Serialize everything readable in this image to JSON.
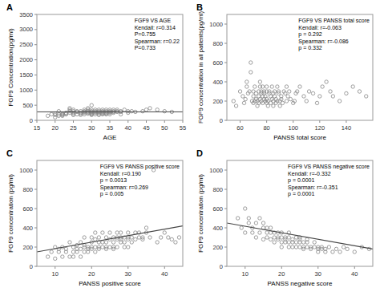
{
  "chart_data": [
    {
      "type": "scatter",
      "panel_label": "A",
      "xlabel": "AGE",
      "ylabel": "FGF9 Concentration(pg/ml)",
      "annotation": "FGF9 VS AGE\nKendall: r=0.314\nP=0.755\nSpearman: r=0.22\nP=0.733",
      "xlim": [
        15,
        55
      ],
      "ylim": [
        0,
        3500
      ],
      "xticks": [
        15,
        20,
        25,
        30,
        35,
        40,
        45,
        50,
        55
      ],
      "yticks": [
        0,
        500,
        1000,
        1500,
        2000,
        2500,
        3000,
        3500
      ],
      "series": [
        {
          "type": "scatter",
          "color": "#888888",
          "x": [
            18,
            19,
            20,
            20,
            20,
            21,
            21,
            21,
            22,
            22,
            22,
            22,
            23,
            23,
            23,
            24,
            24,
            24,
            24,
            25,
            25,
            25,
            25,
            25,
            26,
            26,
            26,
            27,
            27,
            27,
            27,
            28,
            28,
            28,
            28,
            28,
            29,
            29,
            29,
            29,
            29,
            29,
            30,
            30,
            30,
            30,
            30,
            30,
            30,
            30,
            31,
            31,
            31,
            31,
            31,
            32,
            32,
            32,
            32,
            32,
            32,
            33,
            33,
            33,
            33,
            33,
            33,
            34,
            34,
            34,
            34,
            34,
            34,
            35,
            35,
            35,
            35,
            35,
            36,
            36,
            36,
            36,
            37,
            37,
            37,
            38,
            38,
            38,
            39,
            40,
            40,
            41,
            42,
            44,
            45,
            46,
            48,
            50,
            52
          ],
          "values": [
            150,
            200,
            180,
            220,
            100,
            200,
            150,
            300,
            180,
            220,
            200,
            150,
            200,
            250,
            220,
            300,
            350,
            400,
            250,
            200,
            180,
            300,
            250,
            350,
            280,
            300,
            200,
            180,
            220,
            300,
            250,
            280,
            300,
            350,
            200,
            250,
            220,
            250,
            300,
            280,
            350,
            400,
            280,
            300,
            350,
            250,
            220,
            200,
            180,
            500,
            280,
            300,
            250,
            200,
            350,
            280,
            300,
            350,
            200,
            250,
            180,
            200,
            300,
            250,
            350,
            280,
            220,
            250,
            300,
            350,
            280,
            200,
            220,
            280,
            300,
            350,
            200,
            250,
            300,
            350,
            280,
            250,
            280,
            300,
            350,
            280,
            300,
            200,
            350,
            300,
            250,
            300,
            280,
            300,
            350,
            400,
            350,
            300,
            280
          ]
        },
        {
          "type": "hline",
          "color": "#444444",
          "values": [
            280
          ]
        }
      ]
    },
    {
      "type": "scatter",
      "panel_label": "B",
      "xlabel": "PANSS total score",
      "ylabel": "FGF9 concentration in all patients(pg/ml)",
      "annotation": "FGF9 VS PANSS total score\nKendall: r=-0.063\np = 0.292\nSpearman: r=-0.086\np = 0.332",
      "xlim": [
        50,
        160
      ],
      "ylim": [
        0,
        1100
      ],
      "xticks": [
        60,
        80,
        100,
        120,
        140
      ],
      "yticks": [
        0,
        200,
        400,
        600,
        800,
        1000
      ],
      "series": [
        {
          "type": "scatter",
          "color": "#888888",
          "x": [
            55,
            57,
            60,
            62,
            63,
            64,
            65,
            65,
            66,
            67,
            68,
            68,
            69,
            70,
            70,
            70,
            71,
            71,
            72,
            72,
            73,
            73,
            74,
            74,
            74,
            75,
            75,
            75,
            76,
            76,
            76,
            77,
            77,
            77,
            78,
            78,
            78,
            79,
            79,
            80,
            80,
            80,
            80,
            81,
            81,
            82,
            82,
            83,
            83,
            84,
            84,
            85,
            85,
            85,
            86,
            86,
            87,
            87,
            88,
            88,
            89,
            89,
            90,
            90,
            91,
            91,
            92,
            93,
            94,
            95,
            95,
            96,
            97,
            98,
            100,
            101,
            102,
            103,
            105,
            108,
            110,
            112,
            115,
            118,
            120,
            122,
            125,
            128,
            130,
            135,
            140,
            145,
            150,
            155
          ],
          "values": [
            200,
            150,
            300,
            250,
            180,
            220,
            400,
            350,
            280,
            300,
            600,
            500,
            200,
            180,
            250,
            300,
            350,
            200,
            220,
            280,
            150,
            200,
            300,
            250,
            180,
            350,
            220,
            400,
            280,
            300,
            200,
            250,
            350,
            180,
            220,
            300,
            280,
            200,
            250,
            180,
            300,
            350,
            220,
            150,
            200,
            280,
            300,
            250,
            180,
            220,
            350,
            200,
            280,
            150,
            300,
            250,
            220,
            180,
            350,
            200,
            280,
            300,
            150,
            200,
            250,
            220,
            180,
            300,
            280,
            200,
            350,
            250,
            300,
            220,
            180,
            200,
            280,
            300,
            350,
            250,
            200,
            300,
            280,
            180,
            250,
            350,
            400,
            300,
            250,
            200,
            280,
            350,
            300,
            250
          ]
        }
      ]
    },
    {
      "type": "scatter",
      "panel_label": "C",
      "xlabel": "PANSS positive score",
      "ylabel": "FGF9 concentration (pg/ml)",
      "annotation": "FGF9 VS PANSS positive score\nKendall: r=0.190\np = 0.0013\nSpearman: r=0.269\np = 0.005",
      "xlim": [
        5,
        45
      ],
      "ylim": [
        0,
        1100
      ],
      "xticks": [
        10,
        20,
        30,
        40
      ],
      "yticks": [
        0,
        200,
        400,
        600,
        800,
        1000
      ],
      "series": [
        {
          "type": "scatter",
          "color": "#888888",
          "x": [
            8,
            9,
            10,
            10,
            11,
            11,
            12,
            12,
            13,
            13,
            14,
            14,
            15,
            15,
            15,
            16,
            16,
            16,
            17,
            17,
            17,
            18,
            18,
            18,
            18,
            19,
            19,
            19,
            20,
            20,
            20,
            20,
            21,
            21,
            21,
            21,
            22,
            22,
            22,
            22,
            23,
            23,
            23,
            24,
            24,
            24,
            24,
            25,
            25,
            25,
            26,
            26,
            26,
            26,
            27,
            27,
            27,
            27,
            28,
            28,
            28,
            28,
            29,
            29,
            29,
            30,
            30,
            30,
            30,
            31,
            31,
            32,
            32,
            33,
            33,
            34,
            34,
            35,
            35,
            36,
            37,
            38,
            39,
            40,
            41,
            42,
            43,
            44
          ],
          "values": [
            100,
            150,
            80,
            200,
            180,
            150,
            100,
            200,
            150,
            180,
            250,
            100,
            200,
            150,
            100,
            180,
            220,
            150,
            100,
            250,
            180,
            200,
            150,
            300,
            220,
            180,
            200,
            150,
            250,
            300,
            200,
            180,
            350,
            200,
            280,
            150,
            300,
            200,
            250,
            180,
            200,
            350,
            250,
            300,
            200,
            180,
            250,
            200,
            350,
            280,
            300,
            250,
            200,
            180,
            350,
            280,
            300,
            200,
            250,
            350,
            300,
            280,
            200,
            300,
            250,
            200,
            350,
            280,
            300,
            250,
            300,
            350,
            280,
            300,
            350,
            280,
            300,
            400,
            350,
            300,
            1000,
            250,
            300,
            350,
            300,
            280,
            250,
            300
          ]
        },
        {
          "type": "line",
          "color": "#444444",
          "x": [
            5,
            45
          ],
          "values": [
            150,
            420
          ]
        }
      ]
    },
    {
      "type": "scatter",
      "panel_label": "D",
      "xlabel": "PANSS negative score",
      "ylabel": "FGF9 concentration (pg/ml)",
      "annotation": "FGF9 VS PANSS negative score\nKendall: r=-0.332\np = 0.0001\nSpearman: r=-0.351\np = 0.0001",
      "xlim": [
        5,
        45
      ],
      "ylim": [
        0,
        1100
      ],
      "xticks": [
        10,
        20,
        30,
        40
      ],
      "yticks": [
        0,
        200,
        400,
        600,
        800,
        1000
      ],
      "series": [
        {
          "type": "scatter",
          "color": "#888888",
          "x": [
            8,
            9,
            10,
            10,
            11,
            11,
            12,
            12,
            13,
            13,
            14,
            14,
            15,
            15,
            15,
            16,
            16,
            16,
            17,
            17,
            17,
            18,
            18,
            18,
            19,
            19,
            19,
            20,
            20,
            20,
            20,
            21,
            21,
            21,
            22,
            22,
            22,
            22,
            23,
            23,
            23,
            24,
            24,
            24,
            25,
            25,
            25,
            25,
            26,
            26,
            26,
            27,
            27,
            27,
            28,
            28,
            29,
            29,
            30,
            30,
            30,
            31,
            31,
            32,
            32,
            33,
            34,
            35,
            36,
            37,
            38,
            40,
            42,
            44
          ],
          "values": [
            500,
            400,
            600,
            350,
            450,
            500,
            400,
            350,
            300,
            450,
            500,
            350,
            400,
            280,
            450,
            350,
            300,
            400,
            280,
            350,
            400,
            300,
            250,
            350,
            300,
            280,
            350,
            250,
            300,
            350,
            200,
            280,
            300,
            250,
            200,
            300,
            250,
            350,
            200,
            280,
            250,
            200,
            300,
            250,
            280,
            200,
            250,
            300,
            180,
            250,
            200,
            280,
            200,
            250,
            180,
            200,
            200,
            250,
            180,
            200,
            150,
            180,
            200,
            150,
            180,
            200,
            150,
            180,
            150,
            200,
            180,
            150,
            200,
            180
          ]
        },
        {
          "type": "line",
          "color": "#444444",
          "x": [
            5,
            45
          ],
          "values": [
            450,
            180
          ]
        }
      ]
    }
  ]
}
